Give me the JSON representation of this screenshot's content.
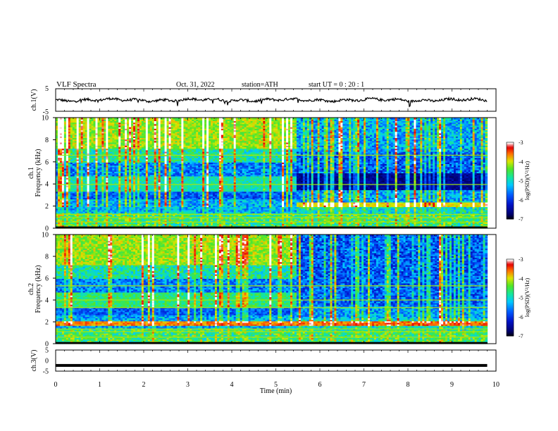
{
  "header": {
    "title": "VLF  Spectra",
    "date": "Oct. 31, 2022",
    "station": "station=ATH",
    "start": "start  UT  =    0  : 20 : 1"
  },
  "chart_data": [
    {
      "type": "line",
      "ylabel": "ch.1(V)",
      "y_ticks": [
        "5",
        "-5"
      ],
      "ylim": [
        -5,
        5
      ],
      "x_range": [
        0,
        10
      ],
      "description_values": {
        "baseline": 0,
        "amplitude_range": [
          -1.5,
          1.5
        ],
        "data_end_min": 9.8
      }
    },
    {
      "type": "heatmap",
      "ylabel": "ch.1\nFrequency  (kHz)",
      "ylim": [
        0,
        10
      ],
      "y_ticks": [
        "0",
        "2",
        "4",
        "6",
        "8",
        "10"
      ],
      "x_range": [
        0,
        10
      ],
      "data_end_min": 9.8,
      "transition_min": 5.45,
      "colorbar": {
        "label": "log(PSD)(V²/Hz)",
        "range": [
          -7,
          -3
        ],
        "ticks": [
          "-3",
          "-4",
          "-5",
          "-6",
          "-7"
        ]
      }
    },
    {
      "type": "heatmap",
      "ylabel": "ch.2\nFrequency  (kHz)",
      "ylim": [
        0,
        10
      ],
      "y_ticks": [
        "0",
        "2",
        "4",
        "6",
        "8",
        "10"
      ],
      "x_range": [
        0,
        10
      ],
      "data_end_min": 9.8,
      "transition_min": 5.45,
      "colorbar": {
        "label": "log(PSD)(V²/Hz)",
        "range": [
          -7,
          -3
        ],
        "ticks": [
          "-3",
          "-4",
          "-5",
          "-6",
          "-7"
        ]
      }
    },
    {
      "type": "line",
      "ylabel": "ch.3(V)",
      "y_ticks": [
        "5",
        "0",
        "-5"
      ],
      "ylim": [
        -5,
        5
      ],
      "x_range": [
        0,
        10
      ],
      "description_values": {
        "level": -2.3,
        "data_end_min": 9.8
      }
    }
  ],
  "x_axis": {
    "label": "Time  (min)",
    "ticks": [
      "0",
      "1",
      "2",
      "3",
      "4",
      "5",
      "6",
      "7",
      "8",
      "9",
      "10"
    ]
  }
}
